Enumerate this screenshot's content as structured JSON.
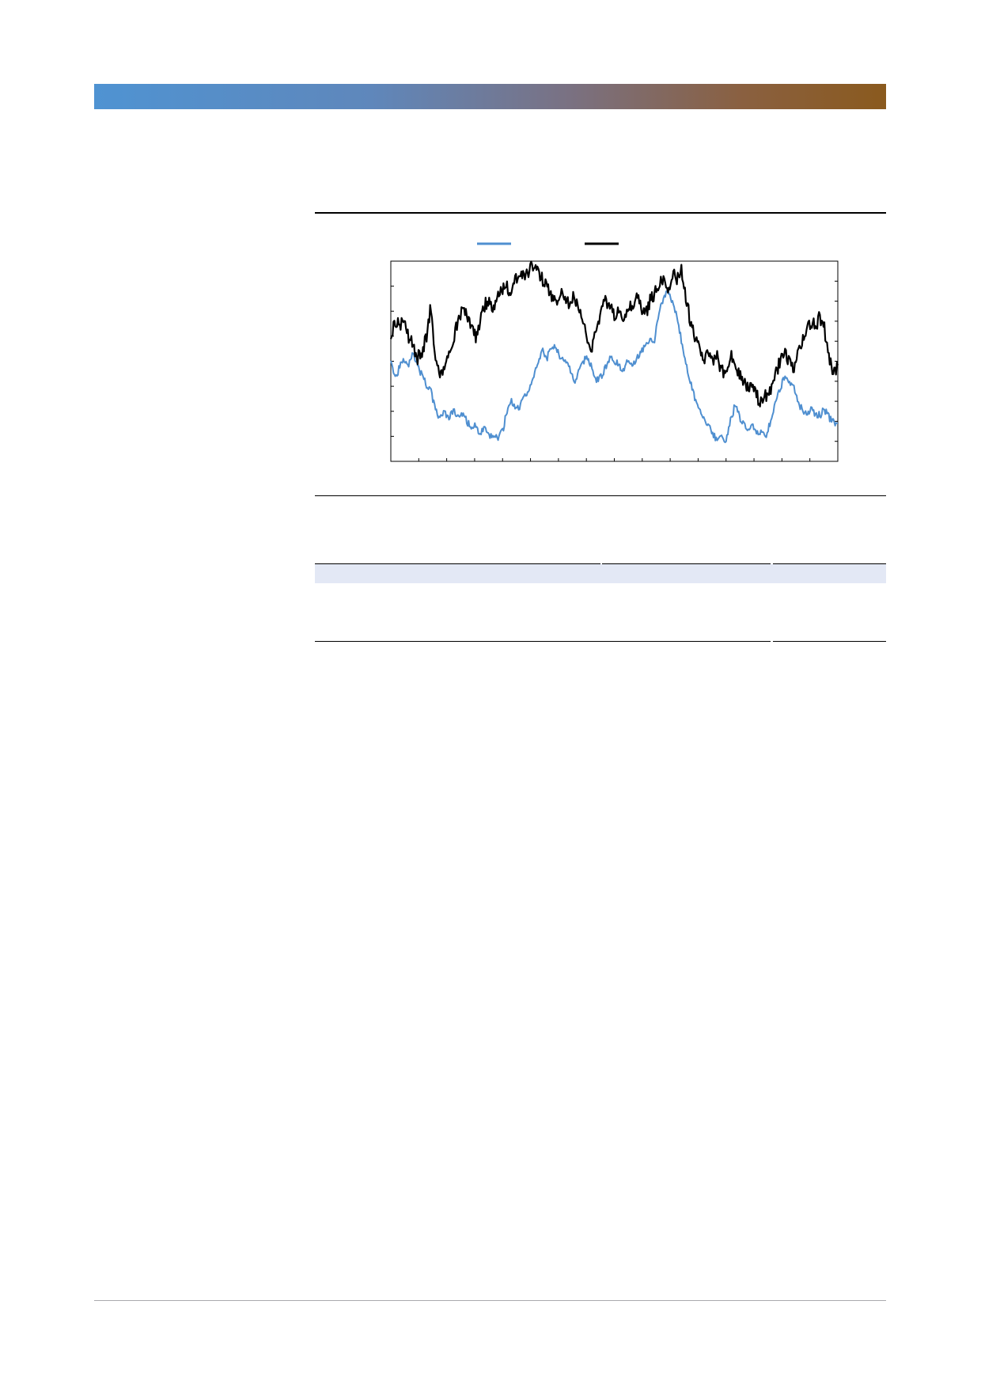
{
  "colors": {
    "header_band_start": "#4f93d2",
    "header_band_end": "#8a5a1e",
    "table_band": "#e3e8f5",
    "series_blue": "#4f8fd0",
    "series_black": "#000000"
  },
  "chart_data": {
    "type": "line",
    "title": "",
    "xlabel": "",
    "ylabel": "",
    "legend_placement": "top-center",
    "grid": false,
    "x_range": [
      0,
      1
    ],
    "y_range": [
      0,
      1
    ],
    "x_tick_count": 16,
    "y_ticks_left_count": 8,
    "y_ticks_right_count": 10,
    "series": [
      {
        "color": "#4f8fd0",
        "axis": "left",
        "keypoints": [
          [
            0.0,
            0.5
          ],
          [
            0.01,
            0.42
          ],
          [
            0.02,
            0.47
          ],
          [
            0.03,
            0.51
          ],
          [
            0.04,
            0.49
          ],
          [
            0.05,
            0.55
          ],
          [
            0.06,
            0.47
          ],
          [
            0.07,
            0.43
          ],
          [
            0.08,
            0.38
          ],
          [
            0.09,
            0.35
          ],
          [
            0.1,
            0.25
          ],
          [
            0.11,
            0.22
          ],
          [
            0.12,
            0.24
          ],
          [
            0.13,
            0.22
          ],
          [
            0.14,
            0.25
          ],
          [
            0.15,
            0.22
          ],
          [
            0.16,
            0.24
          ],
          [
            0.17,
            0.2
          ],
          [
            0.18,
            0.17
          ],
          [
            0.19,
            0.18
          ],
          [
            0.2,
            0.14
          ],
          [
            0.21,
            0.16
          ],
          [
            0.22,
            0.12
          ],
          [
            0.23,
            0.13
          ],
          [
            0.24,
            0.12
          ],
          [
            0.25,
            0.15
          ],
          [
            0.26,
            0.25
          ],
          [
            0.27,
            0.3
          ],
          [
            0.28,
            0.26
          ],
          [
            0.29,
            0.28
          ],
          [
            0.3,
            0.33
          ],
          [
            0.31,
            0.36
          ],
          [
            0.32,
            0.42
          ],
          [
            0.33,
            0.5
          ],
          [
            0.34,
            0.55
          ],
          [
            0.35,
            0.52
          ],
          [
            0.36,
            0.58
          ],
          [
            0.37,
            0.56
          ],
          [
            0.38,
            0.52
          ],
          [
            0.39,
            0.5
          ],
          [
            0.4,
            0.46
          ],
          [
            0.41,
            0.4
          ],
          [
            0.42,
            0.44
          ],
          [
            0.43,
            0.5
          ],
          [
            0.44,
            0.52
          ],
          [
            0.45,
            0.47
          ],
          [
            0.46,
            0.4
          ],
          [
            0.47,
            0.42
          ],
          [
            0.48,
            0.47
          ],
          [
            0.49,
            0.52
          ],
          [
            0.5,
            0.5
          ],
          [
            0.51,
            0.48
          ],
          [
            0.52,
            0.46
          ],
          [
            0.53,
            0.51
          ],
          [
            0.54,
            0.48
          ],
          [
            0.55,
            0.52
          ],
          [
            0.56,
            0.55
          ],
          [
            0.57,
            0.58
          ],
          [
            0.58,
            0.62
          ],
          [
            0.59,
            0.6
          ],
          [
            0.6,
            0.75
          ],
          [
            0.61,
            0.8
          ],
          [
            0.62,
            0.86
          ],
          [
            0.63,
            0.79
          ],
          [
            0.64,
            0.73
          ],
          [
            0.65,
            0.6
          ],
          [
            0.66,
            0.5
          ],
          [
            0.67,
            0.4
          ],
          [
            0.68,
            0.32
          ],
          [
            0.69,
            0.25
          ],
          [
            0.7,
            0.22
          ],
          [
            0.71,
            0.18
          ],
          [
            0.72,
            0.14
          ],
          [
            0.73,
            0.1
          ],
          [
            0.74,
            0.12
          ],
          [
            0.75,
            0.11
          ],
          [
            0.76,
            0.2
          ],
          [
            0.77,
            0.28
          ],
          [
            0.78,
            0.22
          ],
          [
            0.79,
            0.18
          ],
          [
            0.8,
            0.16
          ],
          [
            0.81,
            0.17
          ],
          [
            0.82,
            0.14
          ],
          [
            0.83,
            0.15
          ],
          [
            0.84,
            0.13
          ],
          [
            0.85,
            0.2
          ],
          [
            0.86,
            0.3
          ],
          [
            0.87,
            0.36
          ],
          [
            0.88,
            0.42
          ],
          [
            0.89,
            0.4
          ],
          [
            0.9,
            0.38
          ],
          [
            0.91,
            0.3
          ],
          [
            0.92,
            0.26
          ],
          [
            0.93,
            0.24
          ],
          [
            0.94,
            0.26
          ],
          [
            0.95,
            0.24
          ],
          [
            0.96,
            0.23
          ],
          [
            0.97,
            0.26
          ],
          [
            0.98,
            0.22
          ],
          [
            0.99,
            0.2
          ],
          [
            1.0,
            0.19
          ]
        ]
      },
      {
        "color": "#000000",
        "axis": "right",
        "keypoints": [
          [
            0.0,
            0.62
          ],
          [
            0.01,
            0.7
          ],
          [
            0.02,
            0.67
          ],
          [
            0.03,
            0.73
          ],
          [
            0.04,
            0.62
          ],
          [
            0.05,
            0.58
          ],
          [
            0.06,
            0.52
          ],
          [
            0.07,
            0.55
          ],
          [
            0.08,
            0.62
          ],
          [
            0.09,
            0.78
          ],
          [
            0.1,
            0.48
          ],
          [
            0.11,
            0.42
          ],
          [
            0.12,
            0.47
          ],
          [
            0.13,
            0.52
          ],
          [
            0.14,
            0.6
          ],
          [
            0.15,
            0.7
          ],
          [
            0.16,
            0.76
          ],
          [
            0.17,
            0.73
          ],
          [
            0.18,
            0.66
          ],
          [
            0.19,
            0.62
          ],
          [
            0.2,
            0.7
          ],
          [
            0.21,
            0.78
          ],
          [
            0.22,
            0.8
          ],
          [
            0.23,
            0.75
          ],
          [
            0.24,
            0.82
          ],
          [
            0.25,
            0.85
          ],
          [
            0.26,
            0.88
          ],
          [
            0.27,
            0.83
          ],
          [
            0.28,
            0.91
          ],
          [
            0.29,
            0.94
          ],
          [
            0.3,
            0.92
          ],
          [
            0.31,
            0.96
          ],
          [
            0.32,
            0.97
          ],
          [
            0.33,
            0.95
          ],
          [
            0.34,
            0.9
          ],
          [
            0.35,
            0.86
          ],
          [
            0.36,
            0.82
          ],
          [
            0.37,
            0.78
          ],
          [
            0.38,
            0.86
          ],
          [
            0.39,
            0.83
          ],
          [
            0.4,
            0.79
          ],
          [
            0.41,
            0.82
          ],
          [
            0.42,
            0.76
          ],
          [
            0.43,
            0.7
          ],
          [
            0.44,
            0.62
          ],
          [
            0.45,
            0.55
          ],
          [
            0.46,
            0.66
          ],
          [
            0.47,
            0.74
          ],
          [
            0.48,
            0.8
          ],
          [
            0.49,
            0.77
          ],
          [
            0.5,
            0.72
          ],
          [
            0.51,
            0.76
          ],
          [
            0.52,
            0.7
          ],
          [
            0.53,
            0.74
          ],
          [
            0.54,
            0.78
          ],
          [
            0.55,
            0.82
          ],
          [
            0.56,
            0.76
          ],
          [
            0.57,
            0.74
          ],
          [
            0.58,
            0.8
          ],
          [
            0.59,
            0.84
          ],
          [
            0.6,
            0.88
          ],
          [
            0.61,
            0.92
          ],
          [
            0.62,
            0.86
          ],
          [
            0.63,
            0.94
          ],
          [
            0.64,
            0.9
          ],
          [
            0.65,
            0.96
          ],
          [
            0.66,
            0.82
          ],
          [
            0.67,
            0.7
          ],
          [
            0.68,
            0.62
          ],
          [
            0.69,
            0.56
          ],
          [
            0.7,
            0.5
          ],
          [
            0.71,
            0.54
          ],
          [
            0.72,
            0.48
          ],
          [
            0.73,
            0.52
          ],
          [
            0.74,
            0.46
          ],
          [
            0.75,
            0.44
          ],
          [
            0.76,
            0.55
          ],
          [
            0.77,
            0.48
          ],
          [
            0.78,
            0.44
          ],
          [
            0.79,
            0.4
          ],
          [
            0.8,
            0.36
          ],
          [
            0.81,
            0.4
          ],
          [
            0.82,
            0.32
          ],
          [
            0.83,
            0.3
          ],
          [
            0.84,
            0.33
          ],
          [
            0.85,
            0.36
          ],
          [
            0.86,
            0.42
          ],
          [
            0.87,
            0.5
          ],
          [
            0.88,
            0.55
          ],
          [
            0.89,
            0.5
          ],
          [
            0.9,
            0.46
          ],
          [
            0.91,
            0.52
          ],
          [
            0.92,
            0.6
          ],
          [
            0.93,
            0.66
          ],
          [
            0.94,
            0.7
          ],
          [
            0.95,
            0.68
          ],
          [
            0.96,
            0.72
          ],
          [
            0.97,
            0.66
          ],
          [
            0.98,
            0.52
          ],
          [
            0.99,
            0.44
          ],
          [
            1.0,
            0.48
          ]
        ]
      }
    ]
  }
}
